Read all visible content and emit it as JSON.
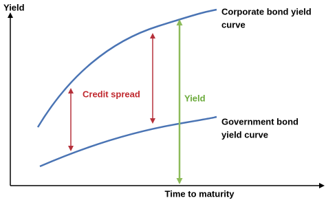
{
  "axes": {
    "y_label": "Yield",
    "x_label": "Time to maturity"
  },
  "curves": [
    {
      "label_lines": [
        "Corporate bond yield",
        "curve"
      ]
    },
    {
      "label_lines": [
        "Government bond",
        "yield curve"
      ]
    }
  ],
  "annotations": {
    "credit_spread": "Credit spread",
    "yield": "Yield"
  }
}
